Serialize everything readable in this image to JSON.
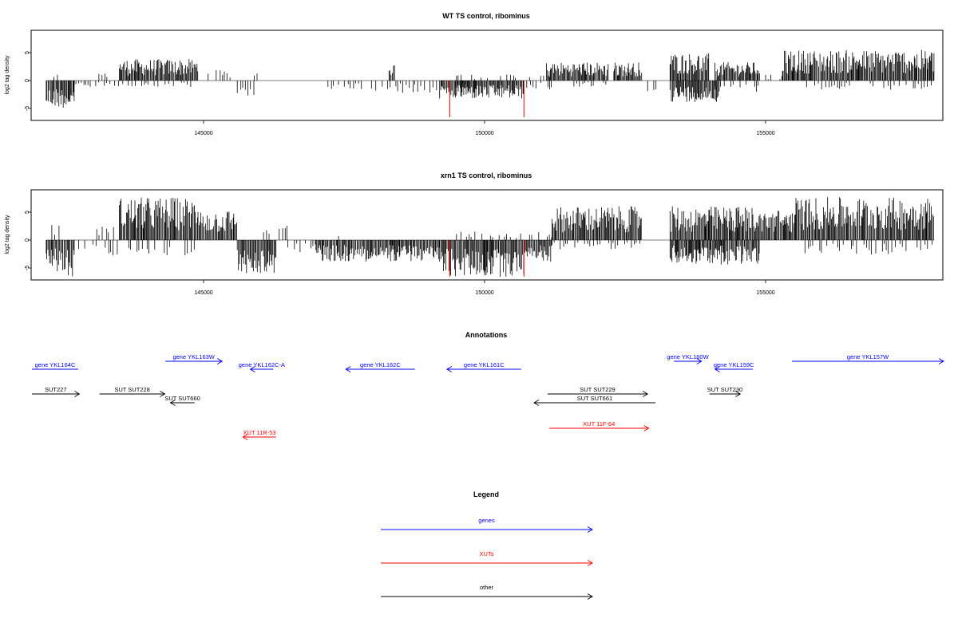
{
  "colors": {
    "genes": "#0000ff",
    "xuts": "#ff0000",
    "other": "#000000",
    "marker": "#ff0000",
    "bars": "#000000"
  },
  "chart_data": [
    {
      "type": "bar",
      "title": "WT TS control, ribominus",
      "ylabel": "log2 tag density",
      "xlim": [
        141900,
        158300
      ],
      "ylim": [
        -7,
        9
      ],
      "x_ticks": [
        "145000",
        "150000",
        "155000"
      ],
      "y_ticks": [
        "5",
        "0",
        "-5"
      ],
      "markers_x": [
        149380,
        150700
      ],
      "segments": [
        {
          "x": [
            142200,
            142700
          ],
          "amp": -4.5,
          "note": "negative"
        },
        {
          "x": [
            142300,
            142450
          ],
          "amp": 1.5
        },
        {
          "x": [
            142700,
            143500
          ],
          "amp": -1.0
        },
        {
          "x": [
            143100,
            143300
          ],
          "amp": 1.5
        },
        {
          "x": [
            143500,
            144900
          ],
          "amp": 3.5
        },
        {
          "x": [
            143500,
            144900
          ],
          "amp": -1.2
        },
        {
          "x": [
            145000,
            145500
          ],
          "amp": 2.0
        },
        {
          "x": [
            145600,
            145900
          ],
          "amp": -2.5
        },
        {
          "x": [
            145900,
            146000
          ],
          "amp": 2.5
        },
        {
          "x": [
            146000,
            147000
          ],
          "amp": 0.0
        },
        {
          "x": [
            147100,
            147400
          ],
          "amp": -1.5
        },
        {
          "x": [
            147400,
            148000
          ],
          "amp": -1.5
        },
        {
          "x": [
            148000,
            149800
          ],
          "amp": -2.0
        },
        {
          "x": [
            148300,
            148400
          ],
          "amp": 3.0
        },
        {
          "x": [
            149200,
            150700
          ],
          "amp": -3.0
        },
        {
          "x": [
            149500,
            150700
          ],
          "amp": 1.0
        },
        {
          "x": [
            150700,
            151200
          ],
          "amp": -1.5
        },
        {
          "x": [
            150800,
            151200
          ],
          "amp": 1.0
        },
        {
          "x": [
            151100,
            152200
          ],
          "amp": 3.0
        },
        {
          "x": [
            151500,
            152200
          ],
          "amp": -1.0
        },
        {
          "x": [
            152300,
            152800
          ],
          "amp": 3.0
        },
        {
          "x": [
            152900,
            153100
          ],
          "amp": -2.0
        },
        {
          "x": [
            153300,
            154000
          ],
          "amp": 4.5
        },
        {
          "x": [
            153300,
            154200
          ],
          "amp": -3.5
        },
        {
          "x": [
            154100,
            154900
          ],
          "amp": 3.0
        },
        {
          "x": [
            154100,
            154900
          ],
          "amp": -2.0
        },
        {
          "x": [
            155000,
            155500
          ],
          "amp": 1.0
        },
        {
          "x": [
            155300,
            155600
          ],
          "amp": 2.5
        },
        {
          "x": [
            155300,
            158000
          ],
          "amp": 5.0
        },
        {
          "x": [
            155700,
            158000
          ],
          "amp": -1.5
        }
      ]
    },
    {
      "type": "bar",
      "title": "xrn1 TS control, ribominus",
      "ylabel": "log2 tag density",
      "xlim": [
        141900,
        158300
      ],
      "ylim": [
        -7,
        9
      ],
      "x_ticks": [
        "145000",
        "150000",
        "155000"
      ],
      "y_ticks": [
        "5",
        "0",
        "-5"
      ],
      "markers_x": [
        149380,
        150700
      ],
      "segments": [
        {
          "x": [
            142200,
            142700
          ],
          "amp": -6.0
        },
        {
          "x": [
            142300,
            142450
          ],
          "amp": 2.5
        },
        {
          "x": [
            142700,
            143500
          ],
          "amp": -2.5
        },
        {
          "x": [
            143100,
            143500
          ],
          "amp": 2.5
        },
        {
          "x": [
            143500,
            144900
          ],
          "amp": 7.0
        },
        {
          "x": [
            143500,
            144900
          ],
          "amp": -2.5
        },
        {
          "x": [
            144900,
            145600
          ],
          "amp": 5.0
        },
        {
          "x": [
            145600,
            146300
          ],
          "amp": -5.5
        },
        {
          "x": [
            146000,
            146500
          ],
          "amp": 2.5
        },
        {
          "x": [
            146500,
            147000
          ],
          "amp": -2.0
        },
        {
          "x": [
            147000,
            149200
          ],
          "amp": -3.5
        },
        {
          "x": [
            147400,
            147500
          ],
          "amp": 2.5
        },
        {
          "x": [
            149200,
            150700
          ],
          "amp": -6.0
        },
        {
          "x": [
            149500,
            150700
          ],
          "amp": 1.5
        },
        {
          "x": [
            150700,
            151200
          ],
          "amp": -3.5
        },
        {
          "x": [
            150800,
            151200
          ],
          "amp": 1.5
        },
        {
          "x": [
            151200,
            152800
          ],
          "amp": 5.5
        },
        {
          "x": [
            151200,
            152800
          ],
          "amp": -1.5
        },
        {
          "x": [
            153300,
            154900
          ],
          "amp": 5.5
        },
        {
          "x": [
            153300,
            154900
          ],
          "amp": -4.0
        },
        {
          "x": [
            154900,
            155500
          ],
          "amp": 5.0
        },
        {
          "x": [
            155500,
            158000
          ],
          "amp": 7.0
        },
        {
          "x": [
            155700,
            158000
          ],
          "amp": -2.5
        }
      ]
    }
  ],
  "annotations": {
    "title": "Annotations",
    "items": [
      {
        "label": "gene YKL164C",
        "color": "genes",
        "row": 1,
        "start": 141900,
        "end": 142770,
        "dir": "none"
      },
      {
        "label": "gene YKL163W",
        "color": "genes",
        "row": 0,
        "start": 144320,
        "end": 145330,
        "dir": "right"
      },
      {
        "label": "gene YKL162C-A",
        "color": "genes",
        "row": 1,
        "start": 145830,
        "end": 146240,
        "dir": "left"
      },
      {
        "label": "gene YKL162C",
        "color": "genes",
        "row": 1,
        "start": 147530,
        "end": 148760,
        "dir": "left"
      },
      {
        "label": "gene YKL161C",
        "color": "genes",
        "row": 1,
        "start": 149330,
        "end": 150650,
        "dir": "left"
      },
      {
        "label": "gene YKL160W",
        "color": "genes",
        "row": 0,
        "start": 153370,
        "end": 153860,
        "dir": "right"
      },
      {
        "label": "gene YKL159C",
        "color": "genes",
        "row": 1,
        "start": 154100,
        "end": 154770,
        "dir": "left"
      },
      {
        "label": "gene YKL157W",
        "color": "genes",
        "row": 0,
        "start": 155470,
        "end": 158260,
        "dir": "right"
      },
      {
        "label": "SUT227",
        "color": "other",
        "row": 2,
        "start": 141900,
        "end": 142790,
        "dir": "right"
      },
      {
        "label": "SUT SUT228",
        "color": "other",
        "row": 2,
        "start": 143150,
        "end": 144310,
        "dir": "right"
      },
      {
        "label": "SUT SUT660",
        "color": "other",
        "row": 3,
        "start": 144410,
        "end": 144840,
        "dir": "left"
      },
      {
        "label": "SUT SUT229",
        "color": "other",
        "row": 2,
        "start": 151120,
        "end": 152900,
        "dir": "right"
      },
      {
        "label": "SUT SUT661",
        "color": "other",
        "row": 3,
        "start": 150880,
        "end": 153040,
        "dir": "left"
      },
      {
        "label": "SUT SUT230",
        "color": "other",
        "row": 2,
        "start": 154000,
        "end": 154550,
        "dir": "right"
      },
      {
        "label": "XUT 11R-53",
        "color": "xuts",
        "row": 5,
        "start": 145700,
        "end": 146290,
        "dir": "left"
      },
      {
        "label": "XUT 11F-64",
        "color": "xuts",
        "row": 4,
        "start": 151150,
        "end": 152920,
        "dir": "right"
      }
    ]
  },
  "legend": {
    "title": "Legend",
    "items": [
      {
        "label": "genes",
        "color": "genes"
      },
      {
        "label": "XUTs",
        "color": "xuts"
      },
      {
        "label": "other",
        "color": "other"
      }
    ]
  }
}
